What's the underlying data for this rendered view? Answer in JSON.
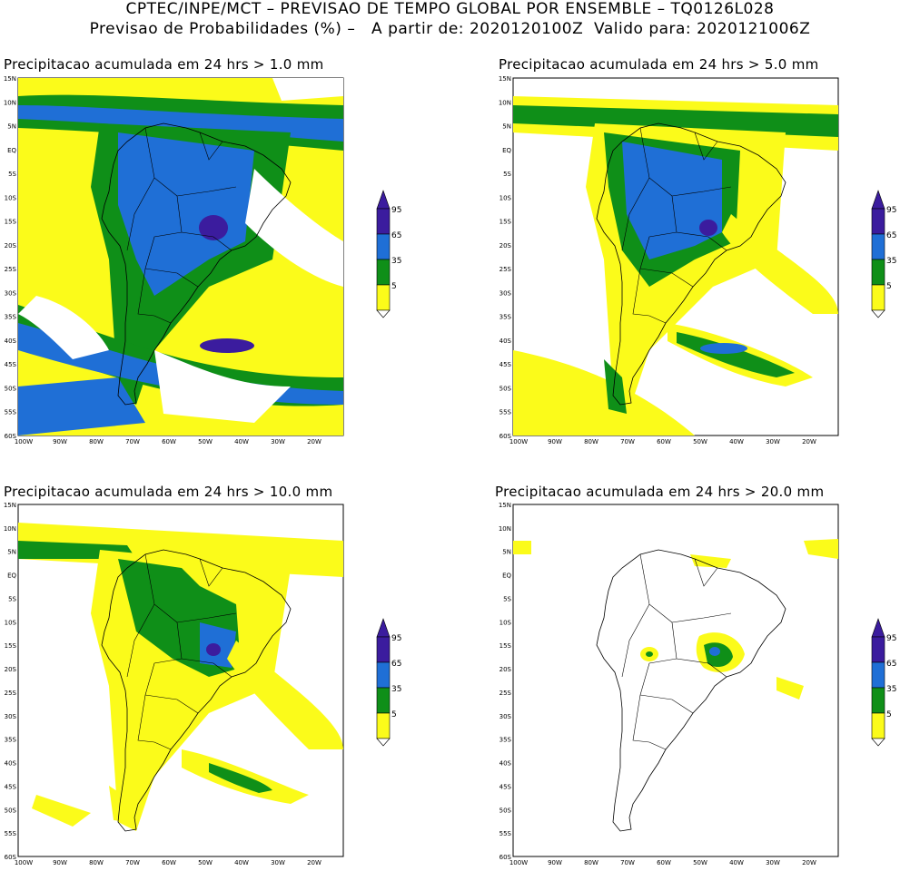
{
  "header": {
    "line1": "CPTEC/INPE/MCT – PREVISAO DE TEMPO GLOBAL POR ENSEMBLE – TQ0126L028",
    "line2": "Previsao de Probabilidades (%) –   A partir de: 2020120100Z  Valido para: 2020121006Z"
  },
  "axes": {
    "lat_labels": [
      "15N",
      "10N",
      "5N",
      "EQ",
      "5S",
      "10S",
      "15S",
      "20S",
      "25S",
      "30S",
      "35S",
      "40S",
      "45S",
      "50S",
      "55S",
      "60S"
    ],
    "lon_labels": [
      "100W",
      "90W",
      "80W",
      "70W",
      "60W",
      "50W",
      "40W",
      "30W",
      "20W"
    ]
  },
  "colorbar": {
    "labels": [
      "95",
      "65",
      "35",
      "5"
    ],
    "colors": {
      "c95": "#3b1c9e",
      "c65": "#1f6fd6",
      "c35": "#0f8f18",
      "c5": "#fbfb1a"
    }
  },
  "panels": [
    {
      "id": "p1",
      "title": "Precipitacao acumulada em 24 hrs > 1.0 mm"
    },
    {
      "id": "p2",
      "title": "Precipitacao acumulada em 24 hrs > 5.0 mm"
    },
    {
      "id": "p3",
      "title": "Precipitacao acumulada em 24 hrs > 10.0 mm"
    },
    {
      "id": "p4",
      "title": "Precipitacao acumulada em 24 hrs > 20.0 mm"
    }
  ]
}
